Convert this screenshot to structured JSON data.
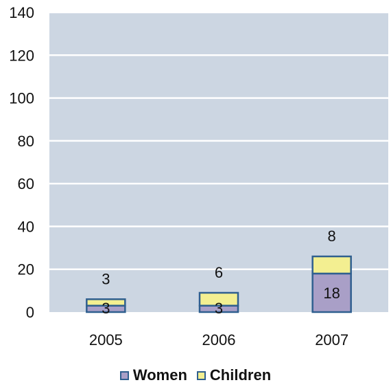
{
  "chart_data": {
    "type": "bar",
    "stacked": true,
    "categories": [
      "2005",
      "2006",
      "2007"
    ],
    "series": [
      {
        "name": "Women",
        "values": [
          3,
          3,
          18
        ],
        "color": "#a99fc7"
      },
      {
        "name": "Children",
        "values": [
          3,
          6,
          8
        ],
        "color": "#f3ef91"
      }
    ],
    "ylim": [
      0,
      140
    ],
    "yticks": [
      "0",
      "20",
      "40",
      "60",
      "80",
      "100",
      "120",
      "140"
    ],
    "grid": true,
    "legend_position": "bottom",
    "plot_background": "#ccd6e2",
    "bar_border_color": "#2f5f8f"
  }
}
